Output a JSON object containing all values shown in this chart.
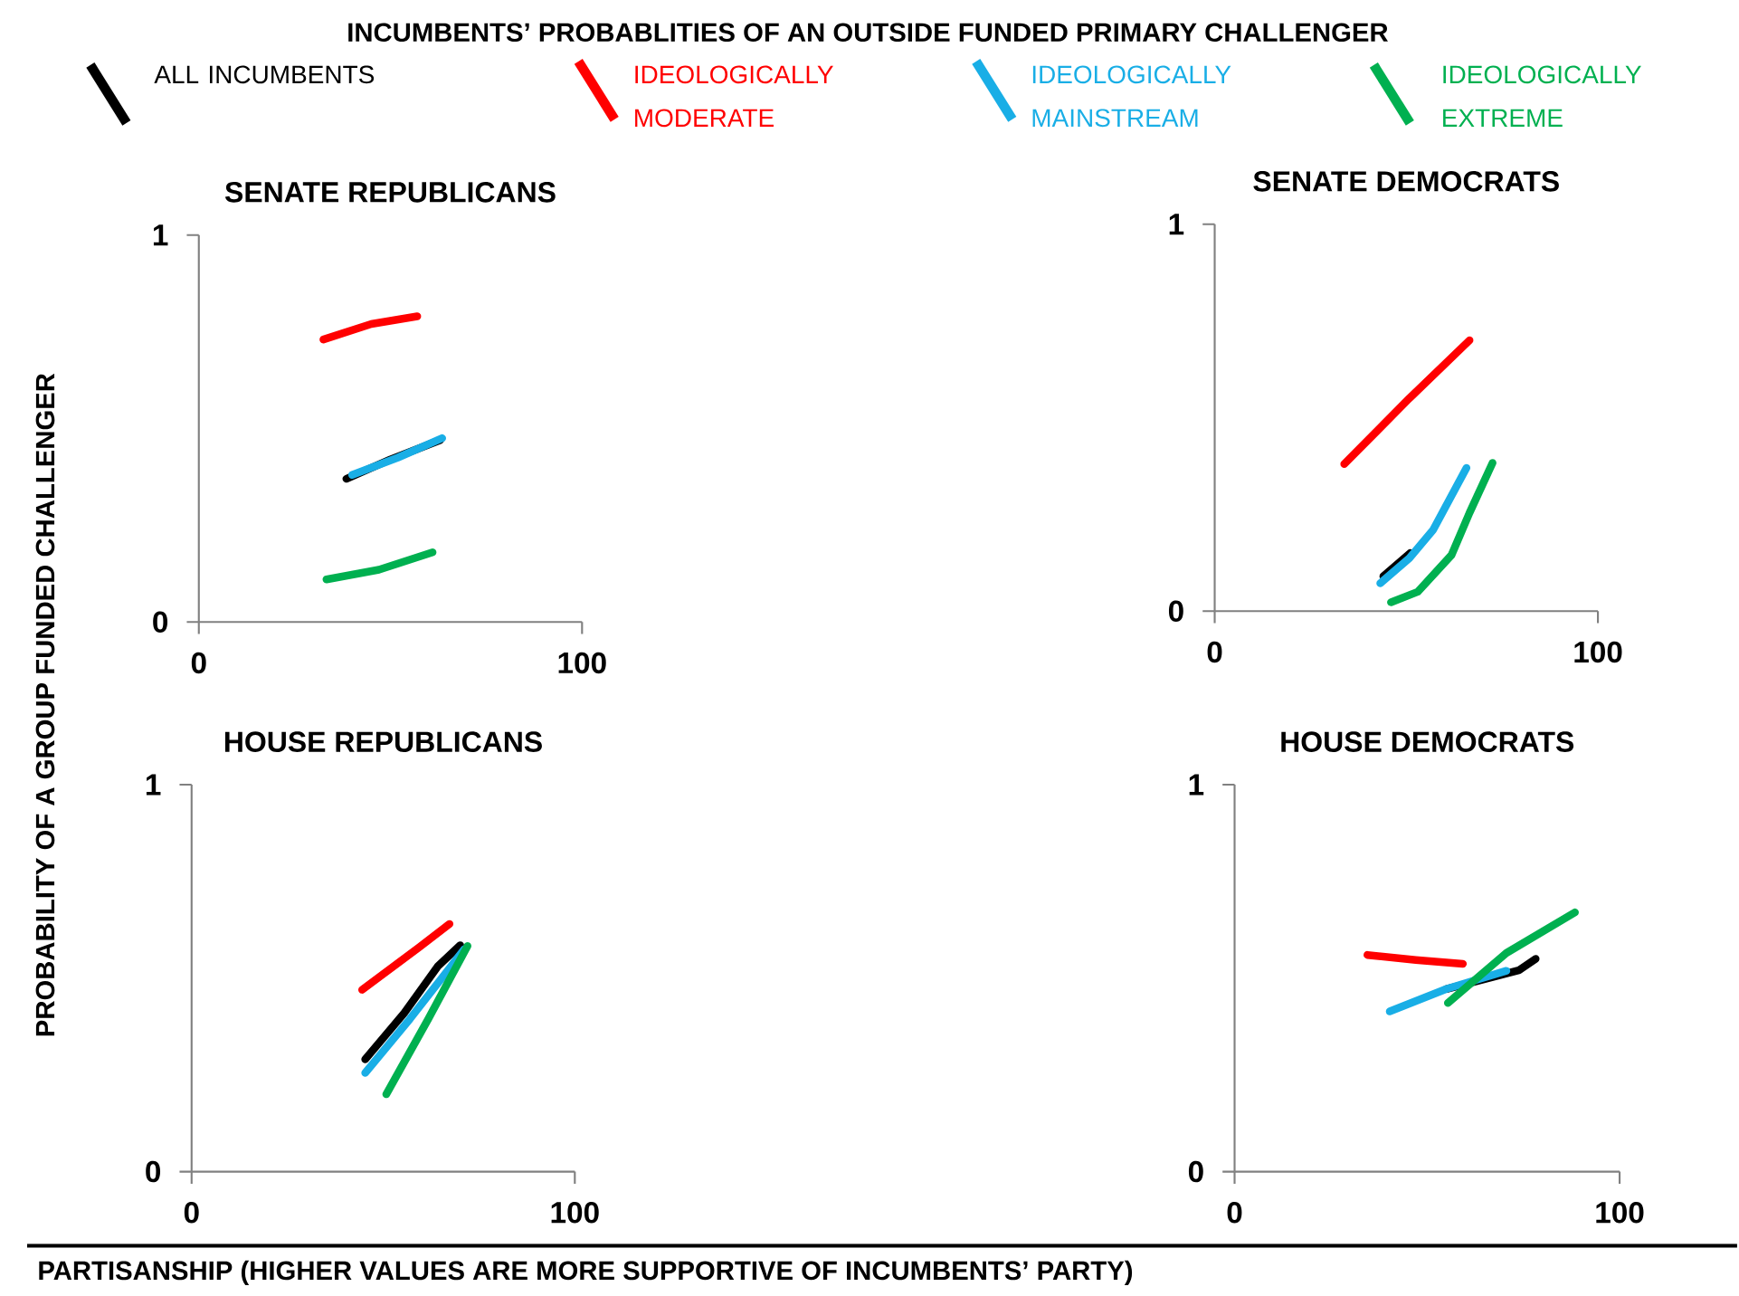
{
  "chart_data": [
    {
      "type": "line",
      "title": "SENATE REPUBLICANS",
      "xlabel": "PARTISANSHIP (HIGHER VALUES ARE MORE SUPPORTIVE OF INCUMBENTS’ PARTY)",
      "ylabel": "PROBABILITY OF A GROUP FUNDED CHALLENGER",
      "annotations": [
        "INCUMBENTS’ PROBABLITIES OF AN OUTSIDE FUNDED PRIMARY CHALLENGER"
      ],
      "legend": "top",
      "xlim": [
        0,
        100
      ],
      "ylim": [
        0,
        1
      ],
      "xticks": [
        0,
        100
      ],
      "yticks": [
        0,
        1
      ],
      "series": [
        {
          "name": "ALL INCUMBENTS",
          "color": "#000000",
          "x": [
            38.5,
            50,
            63
          ],
          "values": [
            0.37,
            0.42,
            0.47
          ]
        },
        {
          "name": "IDEOLOGICALLY MODERATE",
          "color": "#ff0000",
          "x": [
            32.5,
            45,
            57
          ],
          "values": [
            0.73,
            0.77,
            0.79
          ]
        },
        {
          "name": "IDEOLOGICALLY MAINSTREAM",
          "color": "#19aee6",
          "x": [
            40,
            52,
            63.5
          ],
          "values": [
            0.38,
            0.425,
            0.475
          ]
        },
        {
          "name": "IDEOLOGICALLY EXTREME",
          "color": "#00b050",
          "x": [
            33.3,
            47,
            61
          ],
          "values": [
            0.11,
            0.135,
            0.18
          ]
        }
      ]
    },
    {
      "type": "line",
      "title": "SENATE DEMOCRATS",
      "xlim": [
        0,
        100
      ],
      "ylim": [
        0,
        1
      ],
      "xticks": [
        0,
        100
      ],
      "yticks": [
        0,
        1
      ],
      "series": [
        {
          "color": "#000000",
          "x": [
            44,
            51
          ],
          "values": [
            0.09,
            0.15
          ]
        },
        {
          "color": "#ff0000",
          "x": [
            33.8,
            50.8,
            66.5
          ],
          "values": [
            0.38,
            0.55,
            0.7
          ]
        },
        {
          "color": "#19aee6",
          "x": [
            43.2,
            50.8,
            57,
            65.7
          ],
          "values": [
            0.072,
            0.137,
            0.21,
            0.37
          ]
        },
        {
          "color": "#00b050",
          "x": [
            46,
            53,
            61.8,
            66.5,
            72.5
          ],
          "values": [
            0.023,
            0.05,
            0.145,
            0.254,
            0.383
          ]
        }
      ]
    },
    {
      "type": "line",
      "title": "HOUSE REPUBLICANS",
      "xlim": [
        0,
        100
      ],
      "ylim": [
        0,
        1
      ],
      "xticks": [
        0,
        100
      ],
      "yticks": [
        0,
        1
      ],
      "series": [
        {
          "color": "#000000",
          "x": [
            45.3,
            55.5,
            64.2,
            70.1
          ],
          "values": [
            0.29,
            0.41,
            0.53,
            0.585
          ]
        },
        {
          "color": "#ff0000",
          "x": [
            44.5,
            59.4,
            67.3
          ],
          "values": [
            0.47,
            0.58,
            0.64
          ]
        },
        {
          "color": "#19aee6",
          "x": [
            45.3,
            57,
            71.2
          ],
          "values": [
            0.255,
            0.395,
            0.575
          ]
        },
        {
          "color": "#00b050",
          "x": [
            50.8,
            61.8,
            72
          ],
          "values": [
            0.2,
            0.395,
            0.583
          ]
        }
      ]
    },
    {
      "type": "line",
      "title": "HOUSE DEMOCRATS",
      "xlim": [
        0,
        100
      ],
      "ylim": [
        0,
        1
      ],
      "xticks": [
        0,
        100
      ],
      "yticks": [
        0,
        1
      ],
      "series": [
        {
          "color": "#000000",
          "x": [
            55,
            73.8,
            78.2
          ],
          "values": [
            0.472,
            0.52,
            0.55
          ]
        },
        {
          "color": "#ff0000",
          "x": [
            34.5,
            47.1,
            59.3
          ],
          "values": [
            0.56,
            0.547,
            0.537
          ]
        },
        {
          "color": "#19aee6",
          "x": [
            40.3,
            55,
            70.6
          ],
          "values": [
            0.414,
            0.472,
            0.519
          ]
        },
        {
          "color": "#00b050",
          "x": [
            55.4,
            70.6,
            88.4
          ],
          "values": [
            0.436,
            0.565,
            0.67
          ]
        }
      ]
    }
  ]
}
